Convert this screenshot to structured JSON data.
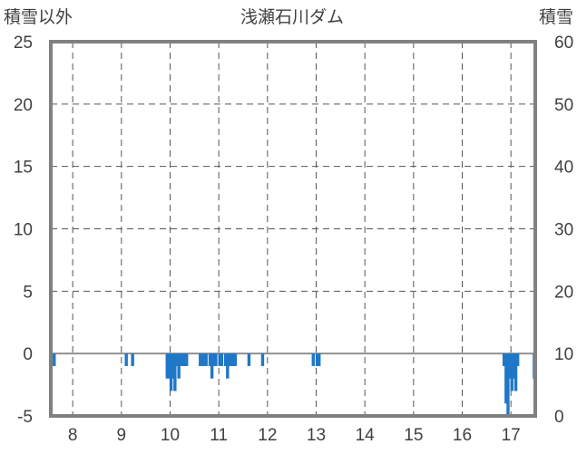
{
  "chart_data": {
    "type": "bar",
    "title": "浅瀬石川ダム",
    "ylabel_left": "積雪以外",
    "ylabel_right": "積雪",
    "x_range": [
      7.55,
      17.5
    ],
    "x_ticks": [
      "8",
      "9",
      "10",
      "11",
      "12",
      "13",
      "14",
      "15",
      "16",
      "17"
    ],
    "y_left_range": [
      -5,
      25
    ],
    "y_left_ticks": [
      "-5",
      "0",
      "5",
      "10",
      "15",
      "20",
      "25"
    ],
    "y_right_range": [
      0,
      60
    ],
    "y_right_ticks": [
      "0",
      "10",
      "20",
      "30",
      "40",
      "50",
      "60"
    ],
    "grid": true,
    "bar_color": "#1f77c8",
    "series": [
      {
        "x": [
          7.62,
          9.1,
          9.23,
          9.94,
          9.98,
          10.02,
          10.06,
          10.1,
          10.14,
          10.18,
          10.22,
          10.26,
          10.3,
          10.34,
          10.62,
          10.66,
          10.7,
          10.74,
          10.82,
          10.86,
          10.9,
          10.94,
          11.02,
          11.06,
          11.14,
          11.18,
          11.22,
          11.26,
          11.3,
          11.34,
          11.62,
          11.9,
          12.94,
          13.02,
          13.06,
          16.86,
          16.9,
          16.94,
          16.98,
          17.02,
          17.06,
          17.1,
          17.14,
          17.48
        ],
        "values": [
          -1.0,
          -1.0,
          -1.0,
          -2.0,
          -2.0,
          -3.0,
          -2.0,
          -3.0,
          -1.0,
          -2.0,
          -1.0,
          -1.0,
          -1.0,
          -1.0,
          -1.0,
          -1.0,
          -1.0,
          -1.0,
          -1.0,
          -2.0,
          -1.0,
          -1.0,
          -1.0,
          -1.0,
          -1.0,
          -2.0,
          -1.0,
          -1.0,
          -1.0,
          -1.0,
          -1.0,
          -1.0,
          -1.0,
          -1.0,
          -1.0,
          -1.0,
          -4.0,
          -5.0,
          -2.0,
          -3.0,
          -2.0,
          -3.0,
          -1.0,
          -2.0
        ]
      }
    ]
  }
}
